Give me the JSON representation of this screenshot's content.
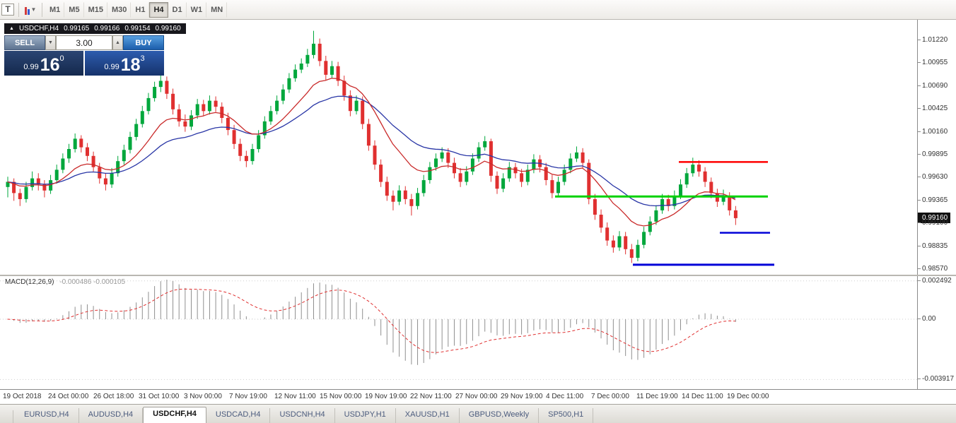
{
  "toolbar": {
    "timeframes": [
      "M1",
      "M5",
      "M15",
      "M30",
      "H1",
      "H4",
      "D1",
      "W1",
      "MN"
    ],
    "active_timeframe": "H4"
  },
  "chart": {
    "symbol_period": "USDCHF,H4",
    "ohlc": {
      "open": "0.99165",
      "high": "0.99166",
      "low": "0.99154",
      "close": "0.99160"
    },
    "trade_panel": {
      "sell_label": "SELL",
      "buy_label": "BUY",
      "volume": "3.00",
      "sell_price": {
        "prefix": "0.99",
        "big": "16",
        "sup": "0"
      },
      "buy_price": {
        "prefix": "0.99",
        "big": "18",
        "sup": "3"
      }
    },
    "price_axis": [
      "1.01220",
      "1.00955",
      "1.00690",
      "1.00425",
      "1.00160",
      "0.99895",
      "0.99630",
      "0.99365",
      "0.99100",
      "0.98835",
      "0.98570"
    ],
    "current_price": "0.99160"
  },
  "macd": {
    "label": "MACD(12,26,9)",
    "values": "-0.000486 -0.000105",
    "axis": [
      "0.002492",
      "0.00",
      "-0.003917"
    ]
  },
  "time_axis": [
    "19 Oct 2018",
    "24 Oct 00:00",
    "26 Oct 18:00",
    "31 Oct 10:00",
    "3 Nov 00:00",
    "7 Nov 19:00",
    "12 Nov 11:00",
    "15 Nov 00:00",
    "19 Nov 19:00",
    "22 Nov 11:00",
    "27 Nov 00:00",
    "29 Nov 19:00",
    "4 Dec 11:00",
    "7 Dec 00:00",
    "11 Dec 19:00",
    "14 Dec 11:00",
    "19 Dec 00:00"
  ],
  "tabs": {
    "items": [
      "EURUSD,H4",
      "AUDUSD,H4",
      "USDCHF,H4",
      "USDCAD,H4",
      "USDCNH,H4",
      "USDJPY,H1",
      "XAUUSD,H1",
      "GBPUSD,Weekly",
      "SP500,H1"
    ],
    "active": "USDCHF,H4"
  },
  "chart_data": {
    "type": "candlestick",
    "symbol": "USDCHF",
    "timeframe": "H4",
    "price_range": [
      0.9857,
      1.0122
    ],
    "colors": {
      "up": "#00a73c",
      "down": "#e03030",
      "histogram": "#8f8f8f",
      "signal": "#e03030"
    },
    "overlays": {
      "ma_fast": {
        "type": "EMA",
        "period": 12,
        "color": "#c92a2a"
      },
      "ma_slow": {
        "type": "EMA",
        "period": 26,
        "color": "#2936a6"
      }
    },
    "hlines": [
      {
        "price": 0.9981,
        "x1": 0.74,
        "x2": 0.837,
        "color": "#ff0000",
        "width": 2.5
      },
      {
        "price": 0.9941,
        "x1": 0.605,
        "x2": 0.837,
        "color": "#00d200",
        "width": 3
      },
      {
        "price": 0.9899,
        "x1": 0.785,
        "x2": 0.84,
        "color": "#0000d8",
        "width": 2.5
      },
      {
        "price": 0.9862,
        "x1": 0.69,
        "x2": 0.844,
        "color": "#0000d8",
        "width": 3
      }
    ],
    "candles": [
      [
        0.9952,
        0.9964,
        0.994,
        0.9958
      ],
      [
        0.9958,
        0.9962,
        0.9936,
        0.9945
      ],
      [
        0.9945,
        0.995,
        0.993,
        0.9938
      ],
      [
        0.9938,
        0.9958,
        0.9934,
        0.9952
      ],
      [
        0.9952,
        0.997,
        0.9948,
        0.9962
      ],
      [
        0.9962,
        0.9968,
        0.9948,
        0.9955
      ],
      [
        0.9955,
        0.996,
        0.994,
        0.9948
      ],
      [
        0.9948,
        0.9966,
        0.9944,
        0.996
      ],
      [
        0.996,
        0.9978,
        0.9956,
        0.9972
      ],
      [
        0.9972,
        0.9991,
        0.9968,
        0.9985
      ],
      [
        0.9985,
        1.0002,
        0.998,
        0.9996
      ],
      [
        0.9996,
        1.0014,
        0.9992,
        1.0008
      ],
      [
        1.0008,
        1.0012,
        0.9992,
        0.9998
      ],
      [
        0.9998,
        1.0003,
        0.9982,
        0.9988
      ],
      [
        0.9988,
        0.9993,
        0.997,
        0.9975
      ],
      [
        0.9975,
        0.998,
        0.9956,
        0.9962
      ],
      [
        0.9962,
        0.9968,
        0.9948,
        0.9955
      ],
      [
        0.9955,
        0.9974,
        0.9951,
        0.9968
      ],
      [
        0.9968,
        0.9988,
        0.9964,
        0.9982
      ],
      [
        0.9982,
        1.0001,
        0.9978,
        0.9995
      ],
      [
        0.9995,
        1.0016,
        0.9991,
        1.001
      ],
      [
        1.001,
        1.0031,
        1.0006,
        1.0025
      ],
      [
        1.0025,
        1.0046,
        1.0021,
        1.004
      ],
      [
        1.004,
        1.0061,
        1.0036,
        1.0055
      ],
      [
        1.0055,
        1.0074,
        1.0051,
        1.0068
      ],
      [
        1.0068,
        1.0083,
        1.0062,
        1.0075
      ],
      [
        1.0075,
        1.008,
        1.0054,
        1.006
      ],
      [
        1.006,
        1.0066,
        1.0036,
        1.0042
      ],
      [
        1.0042,
        1.0048,
        1.0022,
        1.0028
      ],
      [
        1.0028,
        1.0036,
        1.0016,
        1.0022
      ],
      [
        1.0022,
        1.0041,
        1.0018,
        1.0035
      ],
      [
        1.0035,
        1.0054,
        1.0031,
        1.0048
      ],
      [
        1.0048,
        1.0053,
        1.0034,
        1.004
      ],
      [
        1.004,
        1.0058,
        1.0036,
        1.0052
      ],
      [
        1.0052,
        1.0057,
        1.0039,
        1.0045
      ],
      [
        1.0045,
        1.005,
        1.0026,
        1.0032
      ],
      [
        1.0032,
        1.0038,
        1.0012,
        1.0018
      ],
      [
        1.0018,
        1.0024,
        0.9996,
        1.0002
      ],
      [
        1.0002,
        1.0008,
        0.9982,
        0.9988
      ],
      [
        0.9988,
        0.9994,
        0.9975,
        0.9982
      ],
      [
        0.9982,
        1.0002,
        0.9978,
        0.9996
      ],
      [
        0.9996,
        1.0018,
        0.9992,
        1.0012
      ],
      [
        1.0012,
        1.0034,
        1.0008,
        1.0028
      ],
      [
        1.0028,
        1.0046,
        1.0024,
        1.004
      ],
      [
        1.004,
        1.0058,
        1.0036,
        1.0052
      ],
      [
        1.0052,
        1.0071,
        1.0048,
        1.0065
      ],
      [
        1.0065,
        1.0084,
        1.0061,
        1.0078
      ],
      [
        1.0078,
        1.0094,
        1.0074,
        1.0088
      ],
      [
        1.0088,
        1.0101,
        1.0084,
        1.0095
      ],
      [
        1.0095,
        1.0112,
        1.0091,
        1.0105
      ],
      [
        1.0105,
        1.0133,
        1.0101,
        1.0118
      ],
      [
        1.0118,
        1.0124,
        1.0092,
        1.0098
      ],
      [
        1.0098,
        1.0104,
        1.0076,
        1.0082
      ],
      [
        1.0082,
        1.0098,
        1.0078,
        1.0092
      ],
      [
        1.0092,
        1.0097,
        1.0069,
        1.0075
      ],
      [
        1.0075,
        1.0081,
        1.0052,
        1.0058
      ],
      [
        1.0058,
        1.0064,
        1.0034,
        1.004
      ],
      [
        1.004,
        1.0058,
        1.0036,
        1.0052
      ],
      [
        1.0052,
        1.0057,
        1.0019,
        1.0025
      ],
      [
        1.0025,
        1.0031,
        0.9994,
        1.0
      ],
      [
        1.0,
        1.0006,
        0.9972,
        0.9978
      ],
      [
        0.9978,
        0.9984,
        0.9952,
        0.9958
      ],
      [
        0.9958,
        0.9964,
        0.9936,
        0.9942
      ],
      [
        0.9942,
        0.9948,
        0.9925,
        0.9935
      ],
      [
        0.9935,
        0.9954,
        0.9931,
        0.9948
      ],
      [
        0.9948,
        0.9953,
        0.9932,
        0.9938
      ],
      [
        0.9938,
        0.9944,
        0.9919,
        0.993
      ],
      [
        0.993,
        0.9951,
        0.9926,
        0.9945
      ],
      [
        0.9945,
        0.9966,
        0.9941,
        0.996
      ],
      [
        0.996,
        0.9981,
        0.9956,
        0.9975
      ],
      [
        0.9975,
        0.9991,
        0.9971,
        0.9985
      ],
      [
        0.9985,
        0.9998,
        0.9981,
        0.9992
      ],
      [
        0.9992,
        0.9997,
        0.9974,
        0.998
      ],
      [
        0.998,
        0.9986,
        0.9962,
        0.9968
      ],
      [
        0.9968,
        0.9974,
        0.9952,
        0.9958
      ],
      [
        0.9958,
        0.9976,
        0.9954,
        0.997
      ],
      [
        0.997,
        0.9991,
        0.9966,
        0.9985
      ],
      [
        0.9985,
        1.0004,
        0.9981,
        0.9998
      ],
      [
        0.9998,
        1.0011,
        0.9994,
        1.0005
      ],
      [
        1.0005,
        1.0008,
        0.9958,
        0.9965
      ],
      [
        0.9965,
        0.997,
        0.9944,
        0.995
      ],
      [
        0.995,
        0.9968,
        0.9946,
        0.9962
      ],
      [
        0.9962,
        0.9981,
        0.9958,
        0.9975
      ],
      [
        0.9975,
        0.998,
        0.9962,
        0.9968
      ],
      [
        0.9968,
        0.9973,
        0.9952,
        0.9958
      ],
      [
        0.9958,
        0.9978,
        0.9954,
        0.9972
      ],
      [
        0.9972,
        0.999,
        0.9968,
        0.9984
      ],
      [
        0.9984,
        0.9989,
        0.9969,
        0.9975
      ],
      [
        0.9975,
        0.998,
        0.9954,
        0.996
      ],
      [
        0.996,
        0.9966,
        0.9939,
        0.9945
      ],
      [
        0.9945,
        0.9964,
        0.9941,
        0.9958
      ],
      [
        0.9958,
        0.9978,
        0.9954,
        0.9972
      ],
      [
        0.9972,
        0.9991,
        0.9968,
        0.9985
      ],
      [
        0.9985,
        0.9999,
        0.9981,
        0.9992
      ],
      [
        0.9992,
        0.9997,
        0.9974,
        0.998
      ],
      [
        0.998,
        0.9984,
        0.9932,
        0.9938
      ],
      [
        0.9938,
        0.9944,
        0.9914,
        0.992
      ],
      [
        0.992,
        0.9926,
        0.9899,
        0.9905
      ],
      [
        0.9905,
        0.9911,
        0.9884,
        0.989
      ],
      [
        0.989,
        0.9896,
        0.9876,
        0.9882
      ],
      [
        0.9882,
        0.9901,
        0.9878,
        0.9895
      ],
      [
        0.9895,
        0.99,
        0.9874,
        0.988
      ],
      [
        0.988,
        0.9886,
        0.9864,
        0.987
      ],
      [
        0.987,
        0.9891,
        0.9866,
        0.9885
      ],
      [
        0.9885,
        0.9906,
        0.9881,
        0.99
      ],
      [
        0.99,
        0.9918,
        0.9896,
        0.9912
      ],
      [
        0.9912,
        0.9931,
        0.9908,
        0.9925
      ],
      [
        0.9925,
        0.9944,
        0.9921,
        0.9938
      ],
      [
        0.9938,
        0.9943,
        0.9924,
        0.993
      ],
      [
        0.993,
        0.9948,
        0.9926,
        0.9942
      ],
      [
        0.9942,
        0.9961,
        0.9938,
        0.9955
      ],
      [
        0.9955,
        0.9974,
        0.9951,
        0.9968
      ],
      [
        0.9968,
        0.9986,
        0.9964,
        0.9978
      ],
      [
        0.9978,
        0.9983,
        0.9964,
        0.997
      ],
      [
        0.997,
        0.9975,
        0.9952,
        0.9958
      ],
      [
        0.9958,
        0.9963,
        0.9939,
        0.9945
      ],
      [
        0.9945,
        0.995,
        0.9929,
        0.9935
      ],
      [
        0.9935,
        0.9949,
        0.9931,
        0.9942
      ],
      [
        0.9942,
        0.9946,
        0.9919,
        0.9925
      ],
      [
        0.9925,
        0.993,
        0.9908,
        0.9916
      ]
    ]
  }
}
